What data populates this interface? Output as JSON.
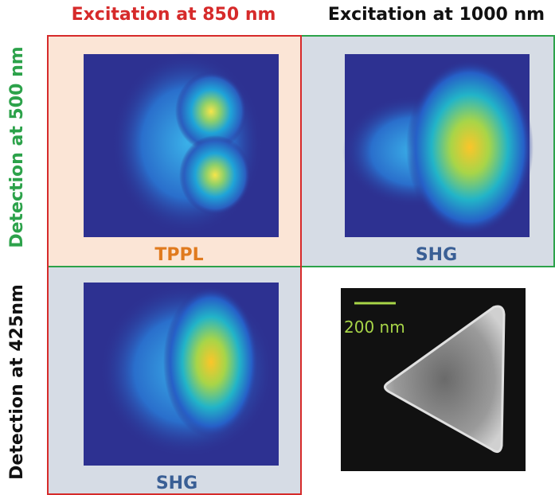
{
  "columns": [
    "Excitation at 850 nm",
    "Excitation at 1000 nm"
  ],
  "rows": [
    "Detection at 500 nm",
    "Detection at 425nm"
  ],
  "panels": [
    {
      "label": "TPPL"
    },
    {
      "label": "SHG"
    },
    {
      "label": "SHG"
    }
  ],
  "scale_bar": {
    "label": "200 nm"
  }
}
